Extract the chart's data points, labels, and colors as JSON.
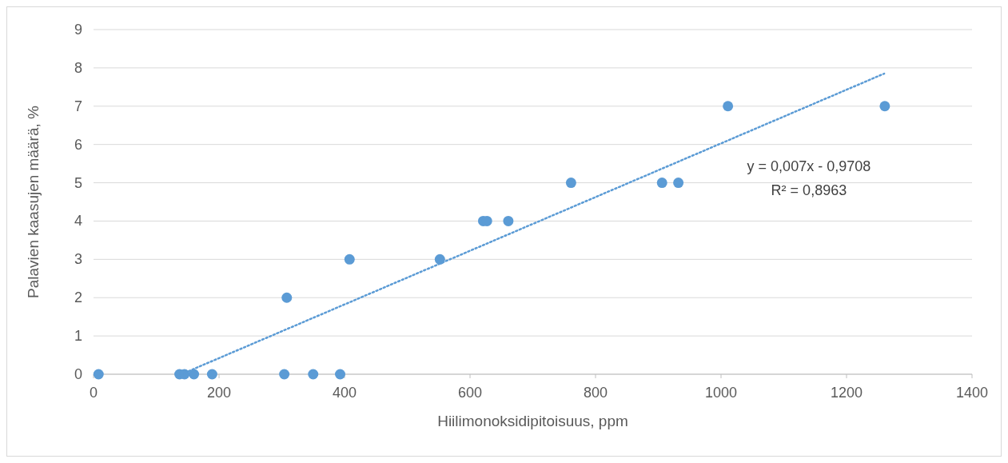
{
  "chart_data": {
    "type": "scatter",
    "xlabel": "Hiilimonoksidipitoisuus, ppm",
    "ylabel": "Palavien kaasujen määrä, %",
    "xlim": [
      0,
      1400
    ],
    "xticks": [
      0,
      200,
      400,
      600,
      800,
      1000,
      1200,
      1400
    ],
    "ylim": [
      0,
      9
    ],
    "yticks": [
      0,
      1,
      2,
      3,
      4,
      5,
      6,
      7,
      8,
      9
    ],
    "grid": "y",
    "series": [
      {
        "marker": "circle",
        "color": "#5b9bd5",
        "x": [
          8,
          137,
          145,
          160,
          189,
          304,
          350,
          393,
          308,
          408,
          552,
          621,
          627,
          661,
          761,
          906,
          932,
          1011,
          1261
        ],
        "values": [
          0,
          0,
          0,
          0,
          0,
          0,
          0,
          0,
          2,
          3,
          3,
          4,
          4,
          4,
          5,
          5,
          5,
          7,
          7
        ]
      },
      {
        "type": "line",
        "line_style": "dotted",
        "color": "#5b9bd5",
        "x": [
          140,
          1260
        ],
        "values": [
          0,
          7.85
        ]
      }
    ],
    "annotations": [
      "y = 0,007x - 0,9708",
      "R² = 0,8963"
    ]
  }
}
